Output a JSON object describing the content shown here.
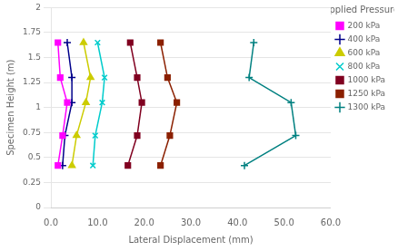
{
  "chart_data": {
    "type": "line",
    "xlabel": "Lateral Displacement (mm)",
    "ylabel": "Specimen Height (m)",
    "xlim": [
      0,
      60
    ],
    "ylim": [
      0,
      2
    ],
    "xticks": [
      {
        "value": 0,
        "label": "0.0"
      },
      {
        "value": 10,
        "label": "10.0"
      },
      {
        "value": 20,
        "label": "20.0"
      },
      {
        "value": 30,
        "label": "30.0"
      },
      {
        "value": 40,
        "label": "40.0"
      },
      {
        "value": 50,
        "label": "50.0"
      },
      {
        "value": 60,
        "label": "60.0"
      }
    ],
    "yticks": [
      0,
      0.25,
      0.5,
      0.75,
      1,
      1.25,
      1.5,
      1.75,
      2
    ],
    "grid": "y",
    "legend": "right",
    "legend_title": "Applied Pressure:",
    "series": [
      {
        "name": "200 kPa",
        "color": "#FF00FF",
        "marker": "square",
        "x": [
          1.5,
          2.5,
          3.5,
          2.0,
          1.5
        ],
        "values": [
          0.42,
          0.72,
          1.05,
          1.3,
          1.65
        ]
      },
      {
        "name": "400 kPa",
        "color": "#00008B",
        "marker": "plus",
        "x": [
          2.5,
          3.0,
          4.5,
          4.5,
          3.5
        ],
        "values": [
          0.42,
          0.72,
          1.05,
          1.3,
          1.65
        ]
      },
      {
        "name": "600 kPa",
        "color": "#CCCC00",
        "marker": "triangle",
        "x": [
          4.5,
          5.5,
          7.5,
          8.5,
          7.0
        ],
        "values": [
          0.42,
          0.72,
          1.05,
          1.3,
          1.65
        ]
      },
      {
        "name": "800 kPa",
        "color": "#00CCCC",
        "marker": "x",
        "x": [
          9.0,
          9.5,
          11.0,
          11.5,
          10.0
        ],
        "values": [
          0.42,
          0.72,
          1.05,
          1.3,
          1.65
        ]
      },
      {
        "name": "1000 kPa",
        "color": "#800020",
        "marker": "square",
        "x": [
          16.5,
          18.5,
          19.5,
          18.5,
          17.0
        ],
        "values": [
          0.42,
          0.72,
          1.05,
          1.3,
          1.65
        ]
      },
      {
        "name": "1250 kPa",
        "color": "#8B2000",
        "marker": "square",
        "x": [
          23.5,
          25.5,
          27.0,
          25.0,
          23.5
        ],
        "values": [
          0.42,
          0.72,
          1.05,
          1.3,
          1.65
        ]
      },
      {
        "name": "1300 kPa",
        "color": "#008080",
        "marker": "plus",
        "x": [
          41.5,
          52.5,
          51.5,
          42.5,
          43.5
        ],
        "values": [
          0.42,
          0.72,
          1.05,
          1.3,
          1.65
        ]
      }
    ]
  }
}
